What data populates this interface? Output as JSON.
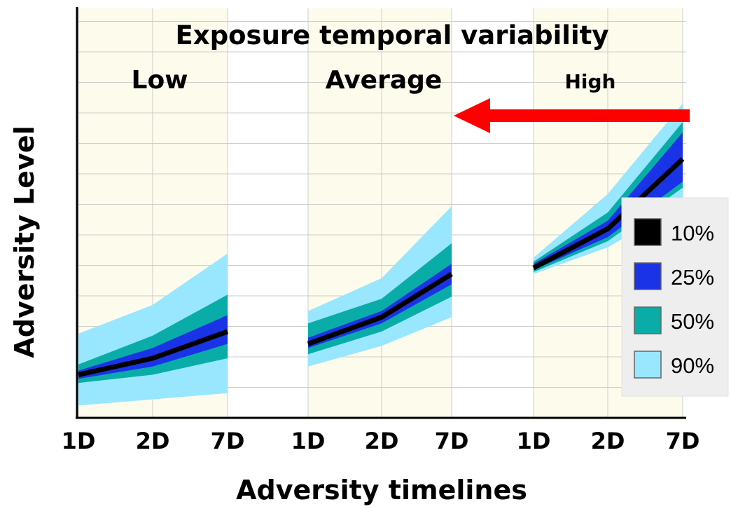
{
  "chart_data": {
    "type": "area",
    "title": "Exposure temporal variability",
    "xlabel": "Adversity timelines",
    "ylabel": "Adversity Level",
    "ylim": [
      0,
      10
    ],
    "grid": true,
    "legend_position": "right",
    "categories": [
      "1D",
      "2D",
      "7D"
    ],
    "groups": [
      {
        "name": "Low",
        "bands": {
          "90%": {
            "lower": [
              0.3,
              0.45,
              0.6
            ],
            "upper": [
              2.05,
              2.75,
              4.0
            ]
          },
          "50%": {
            "lower": [
              0.85,
              1.05,
              1.45
            ],
            "upper": [
              1.3,
              2.0,
              3.0
            ]
          },
          "25%": {
            "lower": [
              0.95,
              1.25,
              1.8
            ],
            "upper": [
              1.15,
              1.7,
              2.5
            ]
          }
        },
        "median": [
          1.05,
          1.45,
          2.1
        ]
      },
      {
        "name": "Average",
        "bands": {
          "90%": {
            "lower": [
              1.25,
              1.75,
              2.45
            ],
            "upper": [
              2.6,
              3.4,
              5.15
            ]
          },
          "50%": {
            "lower": [
              1.55,
              2.1,
              2.95
            ],
            "upper": [
              2.3,
              2.9,
              4.25
            ]
          },
          "25%": {
            "lower": [
              1.7,
              2.3,
              3.25
            ],
            "upper": [
              1.95,
              2.6,
              3.75
            ]
          }
        },
        "median": [
          1.8,
          2.45,
          3.5
        ]
      },
      {
        "name": "High",
        "bands": {
          "90%": {
            "lower": [
              3.5,
              4.15,
              5.2
            ],
            "upper": [
              3.9,
              5.45,
              7.65
            ]
          },
          "50%": {
            "lower": [
              3.55,
              4.3,
              5.6
            ],
            "upper": [
              3.8,
              5.0,
              7.2
            ]
          },
          "25%": {
            "lower": [
              3.6,
              4.4,
              5.75
            ],
            "upper": [
              3.75,
              4.8,
              6.95
            ]
          }
        },
        "median": [
          3.65,
          4.6,
          6.3
        ]
      }
    ],
    "legend": [
      {
        "label": "10%",
        "color": "#000000"
      },
      {
        "label": "25%",
        "color": "#1a33e6"
      },
      {
        "label": "50%",
        "color": "#0aaca8"
      },
      {
        "label": "90%",
        "color": "#99e6ff"
      }
    ],
    "annotation": {
      "type": "arrow",
      "direction": "left",
      "color": "#ff0000"
    }
  }
}
